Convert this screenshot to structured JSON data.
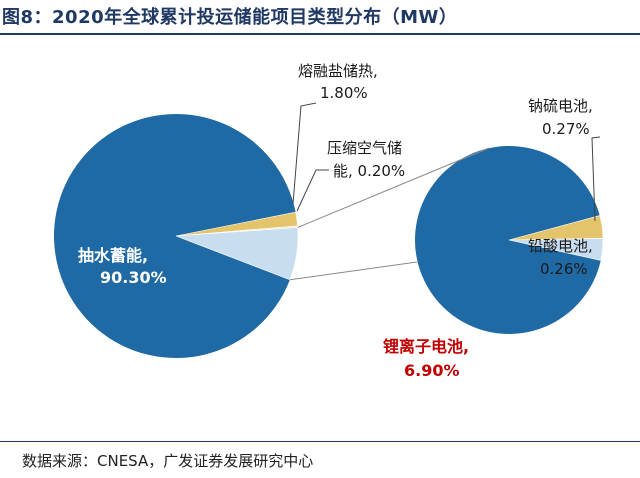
{
  "title": "图8：2020年全球累计投运储能项目类型分布（MW）",
  "source": "数据来源：CNESA，广发证券发展研究中心",
  "colors": {
    "pumped": "#1f6aa5",
    "battery": "#c9ddf1",
    "thermal": "#e3c46a",
    "caes": "#ece3b8",
    "sodium": "#e3c46a",
    "leadacid": "#c9ddf1",
    "connector": "#8a8a8a",
    "highlight": "#c00000",
    "title": "#1f3864"
  },
  "chart_data": [
    {
      "type": "pie",
      "name": "main",
      "slices": [
        {
          "label": "抽水蓄能,",
          "value_label": "90.30%",
          "value": 90.3
        },
        {
          "label": "锂离子电池,",
          "value_label": "6.90%",
          "value": 6.9
        },
        {
          "label": "压缩空气储能,",
          "label_line2": "能, 0.20%",
          "value_label": "0.20%",
          "value": 0.2
        },
        {
          "label": "熔融盐储热,",
          "value_label": "1.80%",
          "value": 1.8
        }
      ]
    },
    {
      "type": "pie",
      "name": "secondary",
      "slices": [
        {
          "label": "钠硫电池,",
          "value_label": "0.27%",
          "value": 0.27
        },
        {
          "label": "铅酸电池,",
          "value_label": "0.26%",
          "value": 0.26
        }
      ]
    }
  ],
  "labels": {
    "pumped_name": "抽水蓄能,",
    "pumped_value": "90.30%",
    "thermal_name": "熔融盐储热,",
    "thermal_value": "1.80%",
    "caes_line1": "压缩空气储",
    "caes_line2": "能, 0.20%",
    "li_name": "锂离子电池,",
    "li_value": "6.90%",
    "sodium_name": "钠硫电池,",
    "sodium_value": "0.27%",
    "lead_name": "铅酸电池,",
    "lead_value": "0.26%"
  }
}
